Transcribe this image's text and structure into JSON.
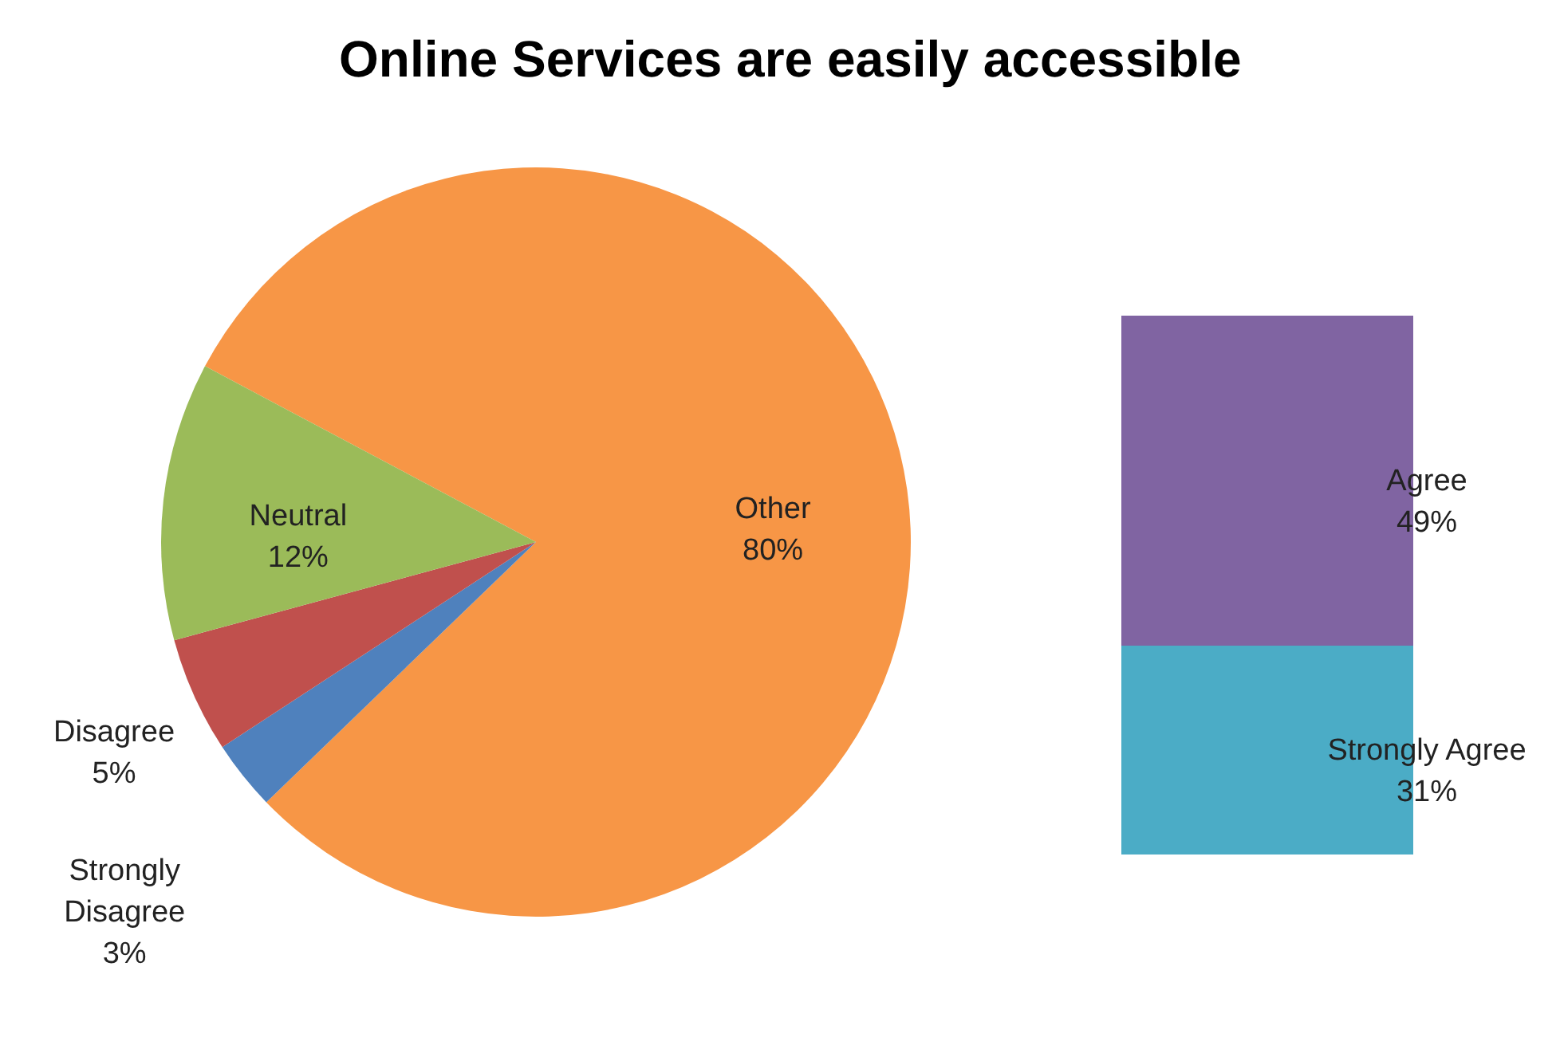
{
  "chart_data": [
    {
      "type": "pie",
      "title": "Online Services are easily accessible",
      "categories": [
        "Other",
        "Strongly Disagree",
        "Disagree",
        "Neutral"
      ],
      "values": [
        80,
        3,
        5,
        12
      ],
      "colors": [
        "#f79646",
        "#4f81bd",
        "#c0504d",
        "#9bbb59"
      ],
      "value_labels": [
        "80%",
        "3%",
        "5%",
        "12%"
      ]
    },
    {
      "type": "bar",
      "stacked": true,
      "categories": [
        null
      ],
      "series": [
        {
          "name": "Strongly Agree",
          "color": "#4bacc6",
          "values": [
            31
          ],
          "value_labels": [
            "31%"
          ]
        },
        {
          "name": "Agree",
          "color": "#8064a2",
          "values": [
            49
          ],
          "value_labels": [
            "49%"
          ]
        }
      ]
    }
  ]
}
